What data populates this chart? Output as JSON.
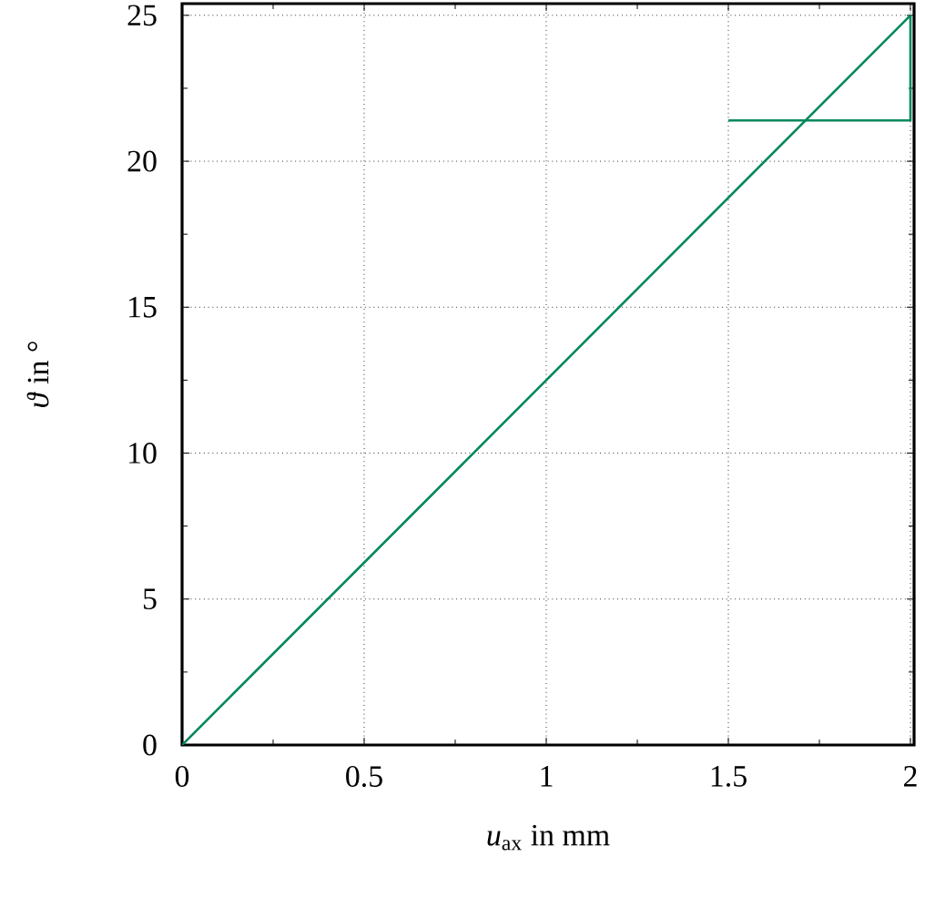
{
  "chart_data": {
    "type": "line",
    "xlabel": "*u*$_{ax}$ in mm",
    "ylabel": "*ϑ* in °",
    "xlim": [
      0,
      2.01
    ],
    "ylim": [
      0,
      25.4
    ],
    "xticks": [
      0,
      0.5,
      1,
      1.5,
      2
    ],
    "yticks": [
      0,
      5,
      10,
      15,
      20,
      25
    ],
    "grid": true,
    "marker": "none",
    "line_style": "solid",
    "series": [
      {
        "color": "#00885a",
        "x": [
          0,
          2
        ],
        "values": [
          0,
          25
        ]
      },
      {
        "color": "#00885a",
        "x": [
          1.5,
          2,
          2
        ],
        "values": [
          21.4,
          21.4,
          25
        ]
      }
    ]
  }
}
